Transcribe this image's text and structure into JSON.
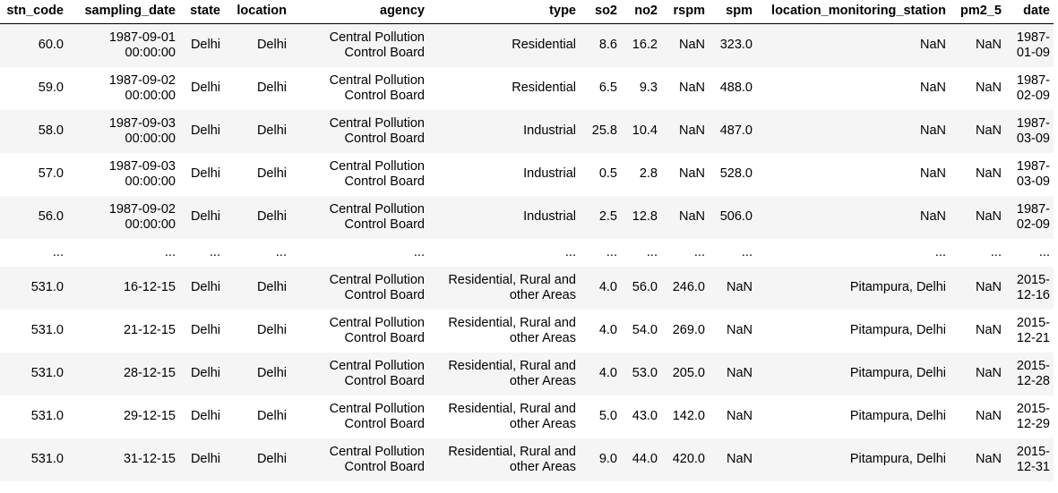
{
  "columns": [
    "stn_code",
    "sampling_date",
    "state",
    "location",
    "agency",
    "type",
    "so2",
    "no2",
    "rspm",
    "spm",
    "location_monitoring_station",
    "pm2_5",
    "date"
  ],
  "rows": [
    [
      "60.0",
      "1987-09-01 00:00:00",
      "Delhi",
      "Delhi",
      "Central Pollution Control Board",
      "Residential",
      "8.6",
      "16.2",
      "NaN",
      "323.0",
      "NaN",
      "NaN",
      "1987-01-09"
    ],
    [
      "59.0",
      "1987-09-02 00:00:00",
      "Delhi",
      "Delhi",
      "Central Pollution Control Board",
      "Residential",
      "6.5",
      "9.3",
      "NaN",
      "488.0",
      "NaN",
      "NaN",
      "1987-02-09"
    ],
    [
      "58.0",
      "1987-09-03 00:00:00",
      "Delhi",
      "Delhi",
      "Central Pollution Control Board",
      "Industrial",
      "25.8",
      "10.4",
      "NaN",
      "487.0",
      "NaN",
      "NaN",
      "1987-03-09"
    ],
    [
      "57.0",
      "1987-09-03 00:00:00",
      "Delhi",
      "Delhi",
      "Central Pollution Control Board",
      "Industrial",
      "0.5",
      "2.8",
      "NaN",
      "528.0",
      "NaN",
      "NaN",
      "1987-03-09"
    ],
    [
      "56.0",
      "1987-09-02 00:00:00",
      "Delhi",
      "Delhi",
      "Central Pollution Control Board",
      "Industrial",
      "2.5",
      "12.8",
      "NaN",
      "506.0",
      "NaN",
      "NaN",
      "1987-02-09"
    ],
    [
      "...",
      "...",
      "...",
      "...",
      "...",
      "...",
      "...",
      "...",
      "...",
      "...",
      "...",
      "...",
      "..."
    ],
    [
      "531.0",
      "16-12-15",
      "Delhi",
      "Delhi",
      "Central Pollution Control Board",
      "Residential, Rural and other Areas",
      "4.0",
      "56.0",
      "246.0",
      "NaN",
      "Pitampura, Delhi",
      "NaN",
      "2015-12-16"
    ],
    [
      "531.0",
      "21-12-15",
      "Delhi",
      "Delhi",
      "Central Pollution Control Board",
      "Residential, Rural and other Areas",
      "4.0",
      "54.0",
      "269.0",
      "NaN",
      "Pitampura, Delhi",
      "NaN",
      "2015-12-21"
    ],
    [
      "531.0",
      "28-12-15",
      "Delhi",
      "Delhi",
      "Central Pollution Control Board",
      "Residential, Rural and other Areas",
      "4.0",
      "53.0",
      "205.0",
      "NaN",
      "Pitampura, Delhi",
      "NaN",
      "2015-12-28"
    ],
    [
      "531.0",
      "29-12-15",
      "Delhi",
      "Delhi",
      "Central Pollution Control Board",
      "Residential, Rural and other Areas",
      "5.0",
      "43.0",
      "142.0",
      "NaN",
      "Pitampura, Delhi",
      "NaN",
      "2015-12-29"
    ],
    [
      "531.0",
      "31-12-15",
      "Delhi",
      "Delhi",
      "Central Pollution Control Board",
      "Residential, Rural and other Areas",
      "9.0",
      "44.0",
      "420.0",
      "NaN",
      "Pitampura, Delhi",
      "NaN",
      "2015-12-31"
    ]
  ]
}
